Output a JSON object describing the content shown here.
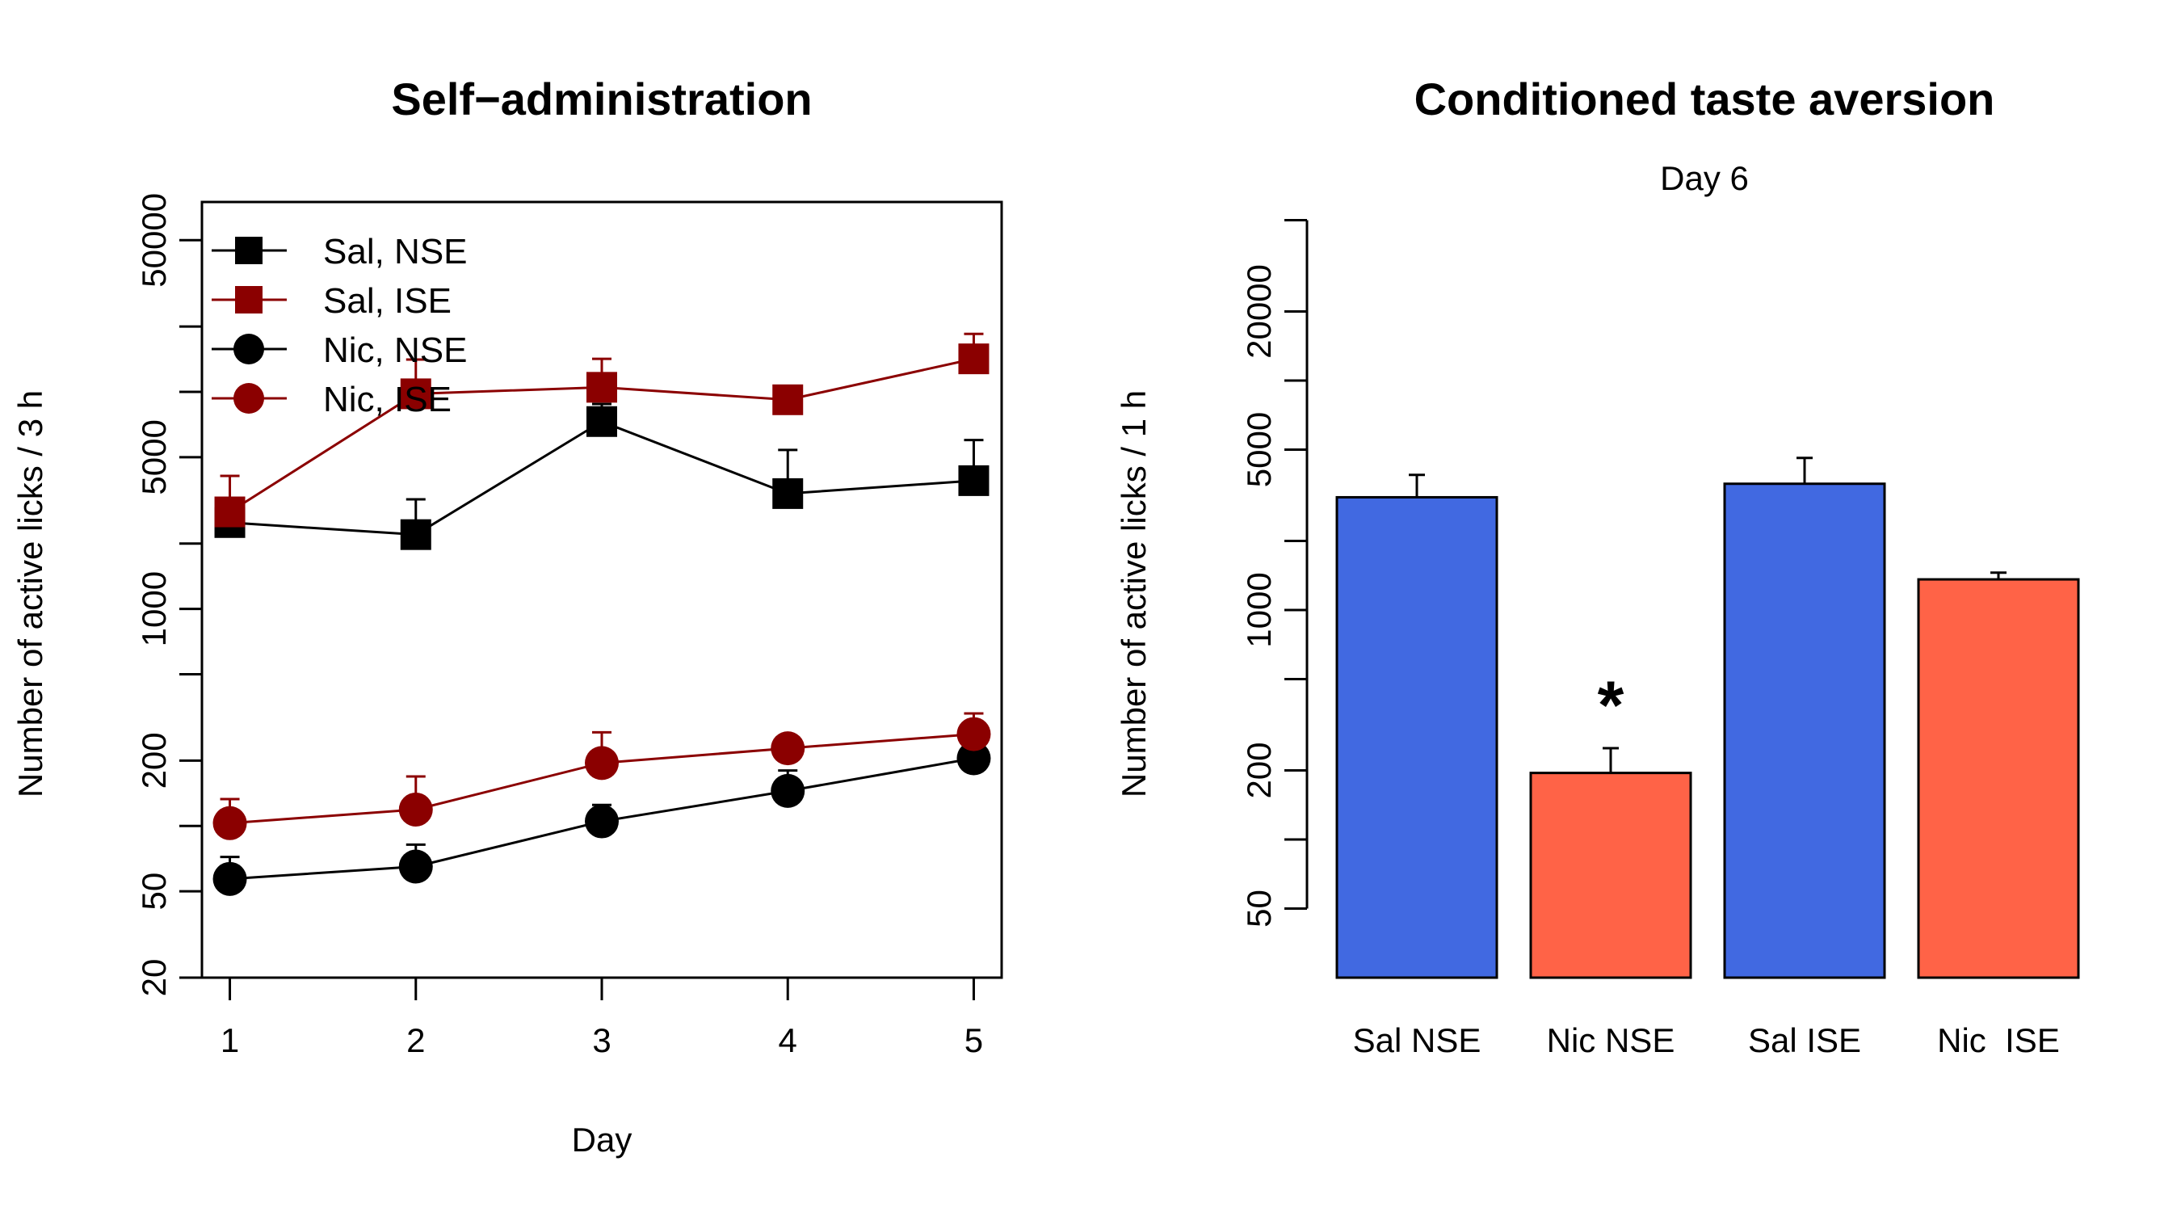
{
  "chart_data": [
    {
      "type": "line",
      "title": "Self−administration",
      "xlabel": "Day",
      "ylabel": "Number of active licks / 3 h",
      "yscale": "log",
      "x": [
        1,
        2,
        3,
        4,
        5
      ],
      "x_ticks": [
        "1",
        "2",
        "3",
        "4",
        "5"
      ],
      "xlim": [
        0.85,
        5.15
      ],
      "ylim": [
        20,
        75000
      ],
      "y_ticks": [
        {
          "value": 20,
          "label": "20"
        },
        {
          "value": 50,
          "label": "50"
        },
        {
          "value": 100,
          "label": ""
        },
        {
          "value": 200,
          "label": "200"
        },
        {
          "value": 500,
          "label": ""
        },
        {
          "value": 1000,
          "label": "1000"
        },
        {
          "value": 2000,
          "label": ""
        },
        {
          "value": 5000,
          "label": "5000"
        },
        {
          "value": 10000,
          "label": ""
        },
        {
          "value": 20000,
          "label": ""
        },
        {
          "value": 50000,
          "label": "50000"
        }
      ],
      "legend": "top-left",
      "series": [
        {
          "name": "Sal, NSE",
          "color": "#000000",
          "marker": "square",
          "values": [
            2500,
            2200,
            7300,
            3400,
            3900
          ],
          "error": [
            500,
            1000,
            1500,
            2000,
            2100
          ]
        },
        {
          "name": "Sal, ISE",
          "color": "#8B0000",
          "marker": "square",
          "values": [
            2800,
            9800,
            10500,
            9200,
            14200
          ],
          "error": [
            1300,
            4300,
            3700,
            1300,
            4300
          ]
        },
        {
          "name": "Nic, NSE",
          "color": "#000000",
          "marker": "circle",
          "values": [
            57,
            65,
            105,
            145,
            205
          ],
          "error": [
            15,
            17,
            20,
            35,
            0
          ]
        },
        {
          "name": "Nic, ISE",
          "color": "#8B0000",
          "marker": "circle",
          "values": [
            103,
            119,
            195,
            228,
            265
          ],
          "error": [
            30,
            50,
            75,
            30,
            65
          ]
        }
      ]
    },
    {
      "type": "bar",
      "title": "Conditioned taste aversion",
      "subtitle": "Day 6",
      "xlabel": "",
      "ylabel": "Number of active licks / 1 h",
      "yscale": "log",
      "categories": [
        "Sal NSE",
        "Nic NSE",
        "Sal ISE",
        "Nic  ISE"
      ],
      "values": [
        3100,
        195,
        3550,
        1360
      ],
      "error": [
        780,
        55,
        1050,
        95
      ],
      "colors": [
        "#4169E1",
        "#FF6347",
        "#4169E1",
        "#FF6347"
      ],
      "ylim": [
        25,
        60000
      ],
      "y_ticks": [
        {
          "value": 50,
          "label": "50"
        },
        {
          "value": 100,
          "label": ""
        },
        {
          "value": 200,
          "label": "200"
        },
        {
          "value": 500,
          "label": ""
        },
        {
          "value": 1000,
          "label": "1000"
        },
        {
          "value": 2000,
          "label": ""
        },
        {
          "value": 5000,
          "label": "5000"
        },
        {
          "value": 10000,
          "label": ""
        },
        {
          "value": 20000,
          "label": "20000"
        },
        {
          "value": 50000,
          "label": ""
        }
      ],
      "annotations": [
        {
          "category": "Nic NSE",
          "text": "*"
        }
      ]
    }
  ]
}
